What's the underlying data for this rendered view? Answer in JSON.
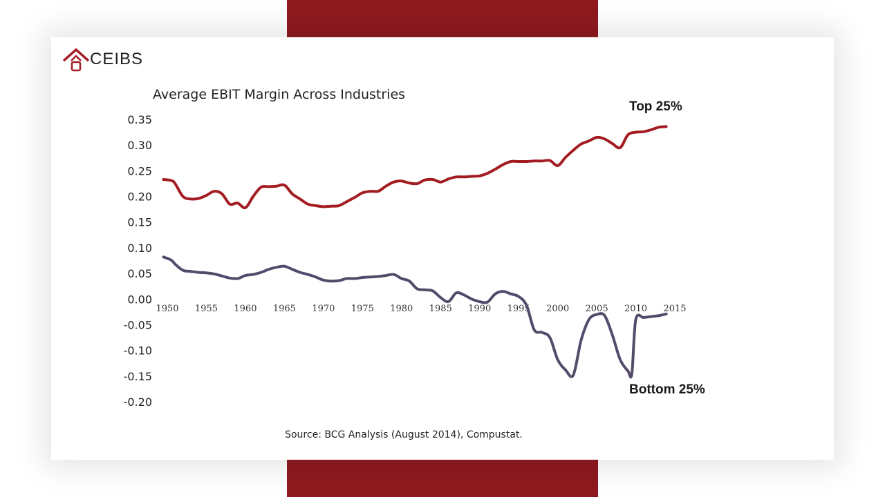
{
  "logo": {
    "text": "CEIBS"
  },
  "colors": {
    "accent": "#8e1a1f",
    "top_series": "#a31c22",
    "bottom_series": "#544b6b"
  },
  "source_text": "Source: BCG Analysis (August 2014), Compustat.",
  "chart_data": {
    "type": "line",
    "title": "Average EBIT Margin Across Industries",
    "xlabel": "",
    "ylabel": "",
    "xlim": [
      1950,
      2015
    ],
    "ylim": [
      -0.2,
      0.35
    ],
    "grid": false,
    "y_ticks": [
      {
        "v": 0.35,
        "label": "0.35"
      },
      {
        "v": 0.3,
        "label": "0.30"
      },
      {
        "v": 0.25,
        "label": "0.25"
      },
      {
        "v": 0.2,
        "label": "0.20"
      },
      {
        "v": 0.15,
        "label": "0.15"
      },
      {
        "v": 0.1,
        "label": "0.10"
      },
      {
        "v": 0.05,
        "label": "0.05"
      },
      {
        "v": 0.0,
        "label": "0.00"
      },
      {
        "v": -0.05,
        "label": "-0.05"
      },
      {
        "v": -0.1,
        "label": "-0.10"
      },
      {
        "v": -0.15,
        "label": "-0.15"
      },
      {
        "v": -0.2,
        "label": "-0.20"
      }
    ],
    "x_ticks": [
      {
        "v": 1950,
        "label": "1950"
      },
      {
        "v": 1955,
        "label": "1955"
      },
      {
        "v": 1960,
        "label": "1960"
      },
      {
        "v": 1965,
        "label": "1965"
      },
      {
        "v": 1970,
        "label": "1970"
      },
      {
        "v": 1975,
        "label": "1975"
      },
      {
        "v": 1980,
        "label": "1980"
      },
      {
        "v": 1985,
        "label": "1985"
      },
      {
        "v": 1990,
        "label": "1990"
      },
      {
        "v": 1995,
        "label": "1995"
      },
      {
        "v": 2000,
        "label": "2000"
      },
      {
        "v": 2005,
        "label": "2005"
      },
      {
        "v": 2010,
        "label": "2010"
      },
      {
        "v": 2015,
        "label": "2015"
      }
    ],
    "series": [
      {
        "name": "Top 25%",
        "label": "Top 25%",
        "color": "#a31c22",
        "x": [
          1949.5,
          1950.5,
          1951,
          1952,
          1953,
          1954,
          1955,
          1956,
          1957,
          1958,
          1959,
          1960,
          1961,
          1962,
          1963,
          1964,
          1965,
          1966,
          1967,
          1968,
          1969,
          1970,
          1971,
          1972,
          1973,
          1974,
          1975,
          1976,
          1977,
          1978,
          1979,
          1980,
          1981,
          1982,
          1983,
          1984,
          1985,
          1986,
          1987,
          1988,
          1989,
          1990,
          1991,
          1992,
          1993,
          1994,
          1995,
          1996,
          1997,
          1998,
          1999,
          2000,
          2001,
          2002,
          2003,
          2004,
          2005,
          2006,
          2007,
          2008,
          2009,
          2010,
          2011,
          2012,
          2013,
          2013.9
        ],
        "y": [
          0.233,
          0.231,
          0.225,
          0.2,
          0.195,
          0.196,
          0.202,
          0.21,
          0.205,
          0.185,
          0.187,
          0.178,
          0.2,
          0.218,
          0.219,
          0.22,
          0.222,
          0.205,
          0.195,
          0.185,
          0.182,
          0.18,
          0.181,
          0.182,
          0.19,
          0.198,
          0.207,
          0.21,
          0.21,
          0.22,
          0.228,
          0.23,
          0.226,
          0.225,
          0.232,
          0.233,
          0.228,
          0.234,
          0.238,
          0.238,
          0.239,
          0.24,
          0.245,
          0.253,
          0.262,
          0.268,
          0.268,
          0.268,
          0.269,
          0.269,
          0.27,
          0.26,
          0.276,
          0.29,
          0.302,
          0.308,
          0.315,
          0.312,
          0.303,
          0.295,
          0.32,
          0.325,
          0.326,
          0.33,
          0.335,
          0.336
        ]
      },
      {
        "name": "Bottom 25%",
        "label": "Bottom 25%",
        "color": "#544b6b",
        "x": [
          1949.5,
          1950.5,
          1951,
          1952,
          1953,
          1954,
          1955,
          1956,
          1957,
          1958,
          1959,
          1960,
          1961,
          1962,
          1963,
          1964,
          1965,
          1966,
          1967,
          1968,
          1969,
          1970,
          1971,
          1972,
          1973,
          1974,
          1975,
          1976,
          1977,
          1978,
          1979,
          1980,
          1981,
          1982,
          1983,
          1984,
          1985,
          1986,
          1987,
          1988,
          1989,
          1990,
          1991,
          1992,
          1993,
          1994,
          1995,
          1996,
          1997,
          1998,
          1999,
          2000,
          2001,
          2002,
          2003,
          2004,
          2005,
          2006,
          2007,
          2008,
          2009,
          2009.5,
          2010,
          2011,
          2012,
          2013,
          2013.9
        ],
        "y": [
          0.082,
          0.076,
          0.068,
          0.056,
          0.054,
          0.052,
          0.051,
          0.049,
          0.045,
          0.041,
          0.04,
          0.046,
          0.048,
          0.052,
          0.058,
          0.062,
          0.064,
          0.058,
          0.052,
          0.048,
          0.043,
          0.037,
          0.035,
          0.036,
          0.04,
          0.04,
          0.042,
          0.043,
          0.044,
          0.046,
          0.048,
          0.04,
          0.035,
          0.02,
          0.018,
          0.016,
          0.003,
          -0.005,
          0.012,
          0.008,
          0.0,
          -0.005,
          -0.006,
          0.01,
          0.015,
          0.01,
          0.005,
          -0.012,
          -0.06,
          -0.065,
          -0.075,
          -0.118,
          -0.138,
          -0.148,
          -0.08,
          -0.04,
          -0.03,
          -0.032,
          -0.07,
          -0.118,
          -0.14,
          -0.145,
          -0.04,
          -0.036,
          -0.034,
          -0.032,
          -0.029
        ]
      }
    ]
  }
}
